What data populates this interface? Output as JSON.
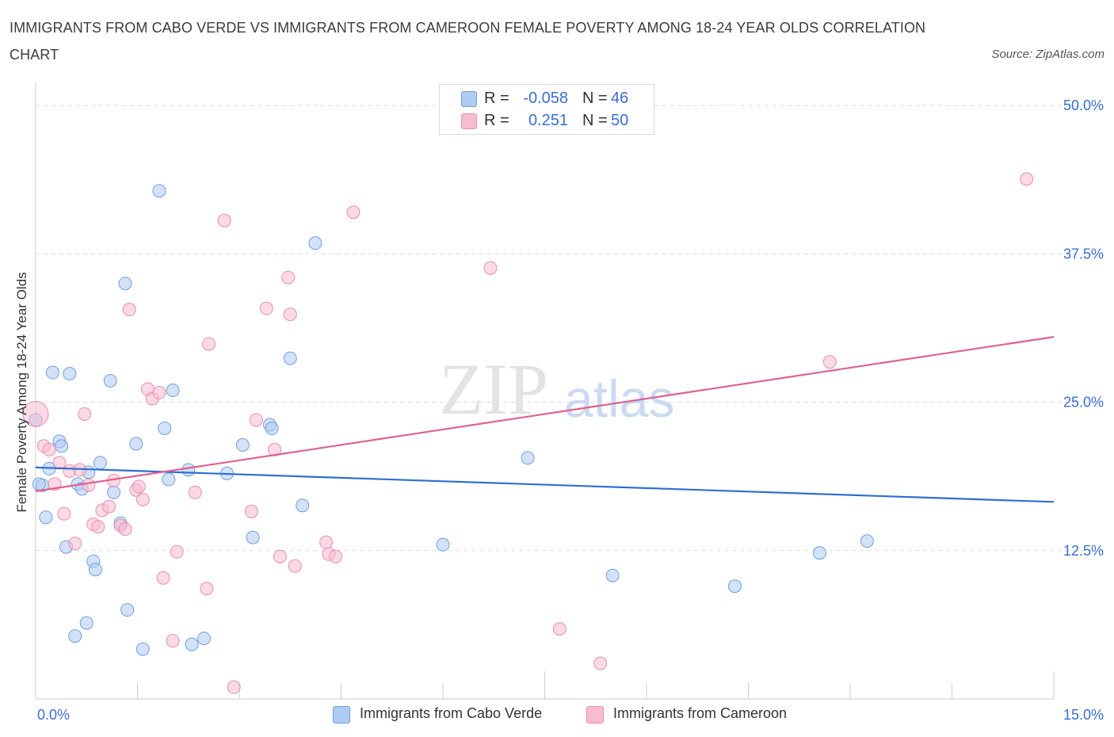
{
  "title": "IMMIGRANTS FROM CABO VERDE VS IMMIGRANTS FROM CAMEROON FEMALE POVERTY AMONG 18-24 YEAR OLDS CORRELATION CHART",
  "source": "Source: ZipAtlas.com",
  "watermark": {
    "zip": "ZIP",
    "atlas": "atlas"
  },
  "legend": {
    "series1": {
      "r_label": "R =",
      "r_value": "-0.058",
      "n_label": "N =",
      "n_value": "46"
    },
    "series2": {
      "r_label": "R =",
      "r_value": "0.251",
      "n_label": "N =",
      "n_value": "50"
    }
  },
  "colors": {
    "blue_fill": "#aecbf3",
    "blue_stroke": "#6f9fe0",
    "blue_line": "#2f6fd0",
    "pink_fill": "#f7bcd0",
    "pink_stroke": "#e98db0",
    "pink_line": "#e06090",
    "tick_text": "#3a6fd0",
    "grid": "#dddddd"
  },
  "chart_data": {
    "type": "scatter",
    "xlabel": "",
    "ylabel": "Female Poverty Among 18-24 Year Olds",
    "xlim": [
      0,
      15
    ],
    "ylim": [
      0,
      50
    ],
    "x_tick_labels": [
      "0.0%",
      "15.0%"
    ],
    "y_ticks": [
      12.5,
      25.0,
      37.5,
      50.0
    ],
    "y_tick_labels": [
      "12.5%",
      "25.0%",
      "37.5%",
      "50.0%"
    ],
    "grid": true,
    "series": [
      {
        "name": "Immigrants from Cabo Verde",
        "color": "blue",
        "trend": {
          "x": [
            0,
            15
          ],
          "y": [
            19.5,
            16.6
          ]
        },
        "points": [
          [
            0.0,
            23.5
          ],
          [
            0.1,
            18.0
          ],
          [
            0.15,
            15.3
          ],
          [
            0.2,
            19.4
          ],
          [
            0.25,
            27.5
          ],
          [
            0.35,
            21.7
          ],
          [
            0.38,
            21.3
          ],
          [
            0.45,
            12.8
          ],
          [
            0.5,
            27.4
          ],
          [
            0.58,
            5.3
          ],
          [
            0.62,
            18.1
          ],
          [
            0.68,
            17.7
          ],
          [
            0.75,
            6.4
          ],
          [
            0.78,
            19.1
          ],
          [
            0.85,
            11.6
          ],
          [
            0.88,
            10.9
          ],
          [
            0.95,
            19.9
          ],
          [
            1.1,
            26.8
          ],
          [
            1.15,
            17.4
          ],
          [
            1.25,
            14.8
          ],
          [
            1.32,
            35.0
          ],
          [
            1.35,
            7.5
          ],
          [
            1.48,
            21.5
          ],
          [
            1.58,
            4.2
          ],
          [
            1.82,
            42.8
          ],
          [
            1.9,
            22.8
          ],
          [
            1.96,
            18.5
          ],
          [
            2.02,
            26.0
          ],
          [
            2.25,
            19.3
          ],
          [
            2.3,
            4.6
          ],
          [
            2.48,
            5.1
          ],
          [
            2.82,
            19.0
          ],
          [
            3.05,
            21.4
          ],
          [
            3.2,
            13.6
          ],
          [
            3.45,
            23.1
          ],
          [
            3.48,
            22.8
          ],
          [
            3.75,
            28.7
          ],
          [
            3.93,
            16.3
          ],
          [
            4.12,
            38.4
          ],
          [
            6.0,
            13.0
          ],
          [
            7.25,
            20.3
          ],
          [
            8.5,
            10.4
          ],
          [
            10.3,
            9.5
          ],
          [
            11.55,
            12.3
          ],
          [
            12.25,
            13.3
          ],
          [
            0.05,
            18.1
          ]
        ]
      },
      {
        "name": "Immigrants from Cameroon",
        "color": "pink",
        "trend": {
          "x": [
            0,
            15
          ],
          "y": [
            17.5,
            30.5
          ]
        },
        "points": [
          [
            0.0,
            24.0
          ],
          [
            0.12,
            21.3
          ],
          [
            0.2,
            21.0
          ],
          [
            0.28,
            18.1
          ],
          [
            0.35,
            19.9
          ],
          [
            0.42,
            15.6
          ],
          [
            0.5,
            19.2
          ],
          [
            0.58,
            13.1
          ],
          [
            0.65,
            19.3
          ],
          [
            0.72,
            24.0
          ],
          [
            0.78,
            18.0
          ],
          [
            0.85,
            14.7
          ],
          [
            0.92,
            14.5
          ],
          [
            0.98,
            15.9
          ],
          [
            1.08,
            16.2
          ],
          [
            1.15,
            18.4
          ],
          [
            1.25,
            14.6
          ],
          [
            1.32,
            14.3
          ],
          [
            1.38,
            32.8
          ],
          [
            1.48,
            17.6
          ],
          [
            1.52,
            17.9
          ],
          [
            1.58,
            16.8
          ],
          [
            1.65,
            26.1
          ],
          [
            1.72,
            25.3
          ],
          [
            1.82,
            25.8
          ],
          [
            1.88,
            10.2
          ],
          [
            2.02,
            4.9
          ],
          [
            2.08,
            12.4
          ],
          [
            2.35,
            17.4
          ],
          [
            2.52,
            9.3
          ],
          [
            2.55,
            29.9
          ],
          [
            2.78,
            40.3
          ],
          [
            2.92,
            1.0
          ],
          [
            3.18,
            15.8
          ],
          [
            3.25,
            23.5
          ],
          [
            3.4,
            32.9
          ],
          [
            3.52,
            21.0
          ],
          [
            3.6,
            12.0
          ],
          [
            3.72,
            35.5
          ],
          [
            3.75,
            32.4
          ],
          [
            3.82,
            11.2
          ],
          [
            4.28,
            13.2
          ],
          [
            4.32,
            12.2
          ],
          [
            4.42,
            12.0
          ],
          [
            4.68,
            41.0
          ],
          [
            6.7,
            36.3
          ],
          [
            7.72,
            5.9
          ],
          [
            8.32,
            3.0
          ],
          [
            11.7,
            28.4
          ],
          [
            14.6,
            43.8
          ]
        ]
      }
    ],
    "bottom_legend": [
      "Immigrants from Cabo Verde",
      "Immigrants from Cameroon"
    ]
  }
}
